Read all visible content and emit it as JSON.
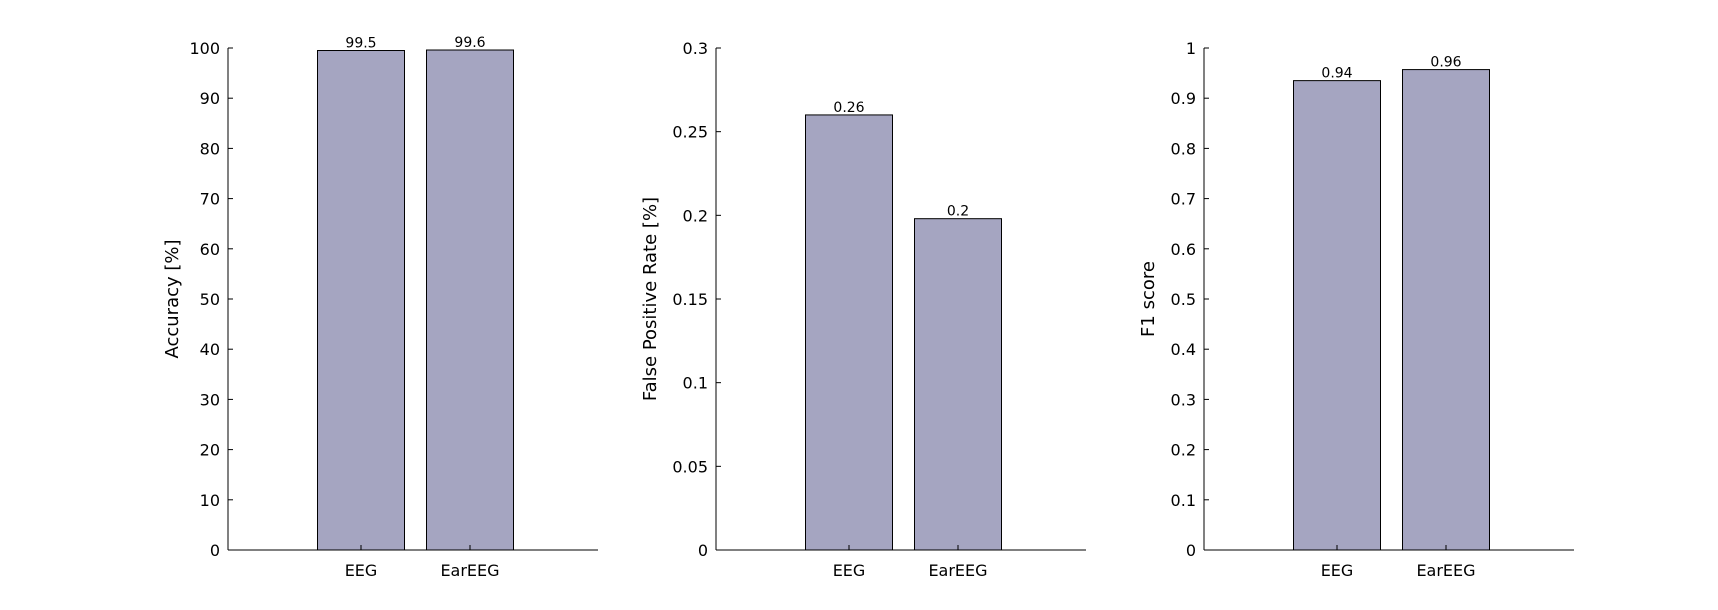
{
  "colors": {
    "bar_fill": "#a5a5c1",
    "bar_stroke": "#000000",
    "axis": "#000000"
  },
  "chart_data": [
    {
      "type": "bar",
      "categories": [
        "EEG",
        "EarEEG"
      ],
      "values": [
        99.5,
        99.6
      ],
      "data_labels": [
        "99.5",
        "99.6"
      ],
      "ylabel": "Accuracy [%]",
      "xlabel": "",
      "ylim": [
        0,
        100
      ],
      "yticks": [
        0,
        10,
        20,
        30,
        40,
        50,
        60,
        70,
        80,
        90,
        100
      ],
      "ytick_labels": [
        "0",
        "10",
        "20",
        "30",
        "40",
        "50",
        "60",
        "70",
        "80",
        "90",
        "100"
      ],
      "grid": false
    },
    {
      "type": "bar",
      "categories": [
        "EEG",
        "EarEEG"
      ],
      "values": [
        0.26,
        0.198
      ],
      "data_labels": [
        "0.26",
        "0.2"
      ],
      "ylabel": "False Positive Rate [%]",
      "xlabel": "",
      "ylim": [
        0,
        0.3
      ],
      "yticks": [
        0,
        0.05,
        0.1,
        0.15,
        0.2,
        0.25,
        0.3
      ],
      "ytick_labels": [
        "0",
        "0.05",
        "0.1",
        "0.15",
        "0.2",
        "0.25",
        "0.3"
      ],
      "grid": false
    },
    {
      "type": "bar",
      "categories": [
        "EEG",
        "EarEEG"
      ],
      "values": [
        0.935,
        0.957
      ],
      "data_labels": [
        "0.94",
        "0.96"
      ],
      "ylabel": "F1 score",
      "xlabel": "",
      "ylim": [
        0,
        1
      ],
      "yticks": [
        0,
        0.1,
        0.2,
        0.3,
        0.4,
        0.5,
        0.6,
        0.7,
        0.8,
        0.9,
        1
      ],
      "ytick_labels": [
        "0",
        "0.1",
        "0.2",
        "0.3",
        "0.4",
        "0.5",
        "0.6",
        "0.7",
        "0.8",
        "0.9",
        "1"
      ],
      "grid": false
    }
  ]
}
